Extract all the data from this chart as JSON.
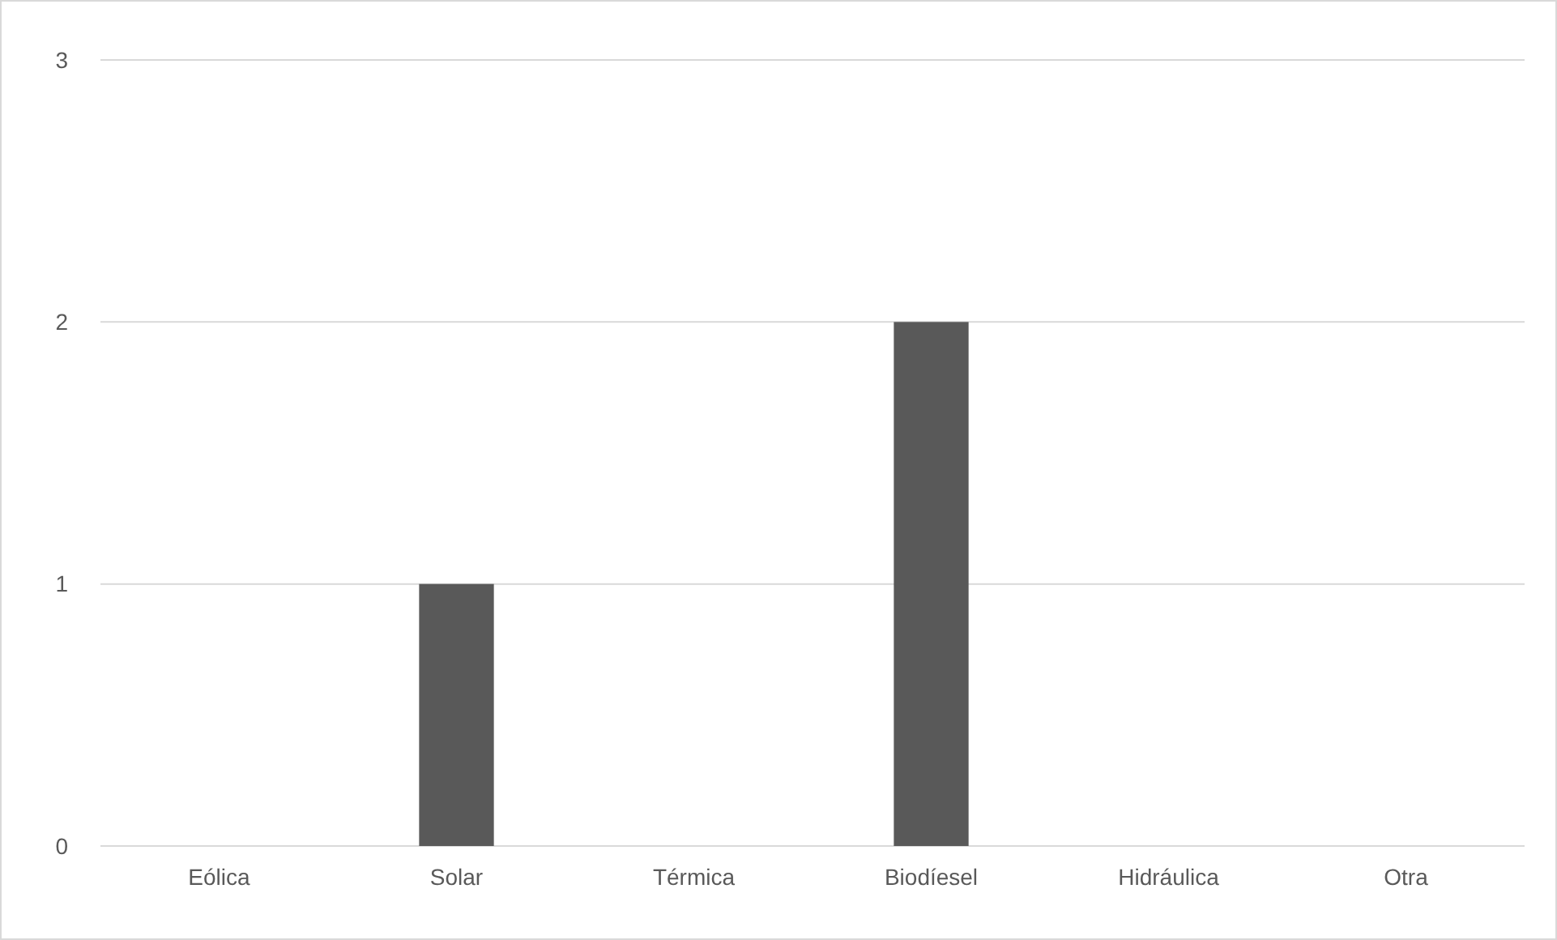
{
  "chart_data": {
    "type": "bar",
    "categories": [
      "Eólica",
      "Solar",
      "Térmica",
      "Biodíesel",
      "Hidráulica",
      "Otra"
    ],
    "values": [
      0,
      1,
      0,
      2,
      0,
      0
    ],
    "color": "#595959",
    "ylim": [
      0,
      3
    ],
    "yticks": [
      0,
      1,
      2,
      3
    ],
    "grid": "y"
  }
}
